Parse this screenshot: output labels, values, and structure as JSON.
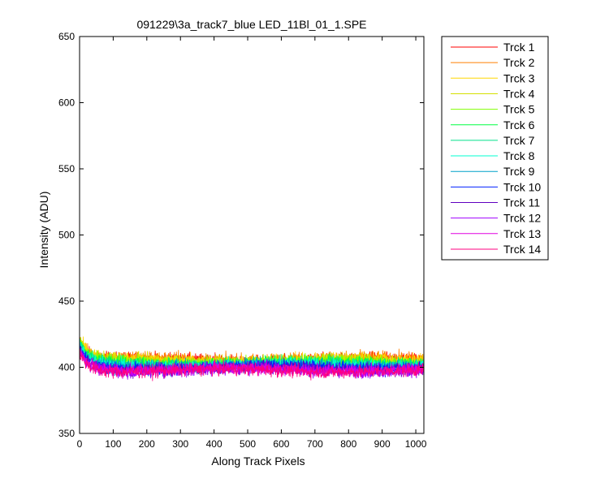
{
  "chart_data": {
    "type": "line",
    "title": "091229\\3a_track7_blue LED_11Bl_01_1.SPE",
    "xlabel": "Along Track Pixels",
    "ylabel": "Intensity (ADU)",
    "xlim": [
      0,
      1024
    ],
    "ylim": [
      350,
      650
    ],
    "x_ticks": [
      0,
      100,
      200,
      300,
      400,
      500,
      600,
      700,
      800,
      900,
      1000
    ],
    "y_ticks": [
      350,
      400,
      450,
      500,
      550,
      600,
      650
    ],
    "grid": false,
    "legend_position": "outside-right",
    "n_points": 1024,
    "series": [
      {
        "name": "Trck 1",
        "color": "#ff0000",
        "start": 420,
        "plateau": 405.5,
        "noise": 2.5
      },
      {
        "name": "Trck 2",
        "color": "#ff7f00",
        "start": 421,
        "plateau": 406.5,
        "noise": 2.5
      },
      {
        "name": "Trck 3",
        "color": "#ffd700",
        "start": 421,
        "plateau": 405.5,
        "noise": 2.5
      },
      {
        "name": "Trck 4",
        "color": "#d4e000",
        "start": 420,
        "plateau": 404.5,
        "noise": 2.5
      },
      {
        "name": "Trck 5",
        "color": "#80ff00",
        "start": 419,
        "plateau": 404.0,
        "noise": 2.5
      },
      {
        "name": "Trck 6",
        "color": "#00ff40",
        "start": 418,
        "plateau": 403.0,
        "noise": 2.5
      },
      {
        "name": "Trck 7",
        "color": "#00e08a",
        "start": 418,
        "plateau": 402.5,
        "noise": 2.5
      },
      {
        "name": "Trck 8",
        "color": "#00ffd0",
        "start": 417,
        "plateau": 402.0,
        "noise": 2.5
      },
      {
        "name": "Trck 9",
        "color": "#00a0c8",
        "start": 416,
        "plateau": 401.0,
        "noise": 2.5
      },
      {
        "name": "Trck 10",
        "color": "#0020ff",
        "start": 415,
        "plateau": 400.0,
        "noise": 2.5
      },
      {
        "name": "Trck 11",
        "color": "#6000c0",
        "start": 414,
        "plateau": 399.0,
        "noise": 2.5
      },
      {
        "name": "Trck 12",
        "color": "#a000ff",
        "start": 414,
        "plateau": 398.0,
        "noise": 2.5
      },
      {
        "name": "Trck 13",
        "color": "#e000e0",
        "start": 413,
        "plateau": 398.5,
        "noise": 2.5
      },
      {
        "name": "Trck 14",
        "color": "#ff0080",
        "start": 412,
        "plateau": 397.5,
        "noise": 2.5
      }
    ]
  }
}
